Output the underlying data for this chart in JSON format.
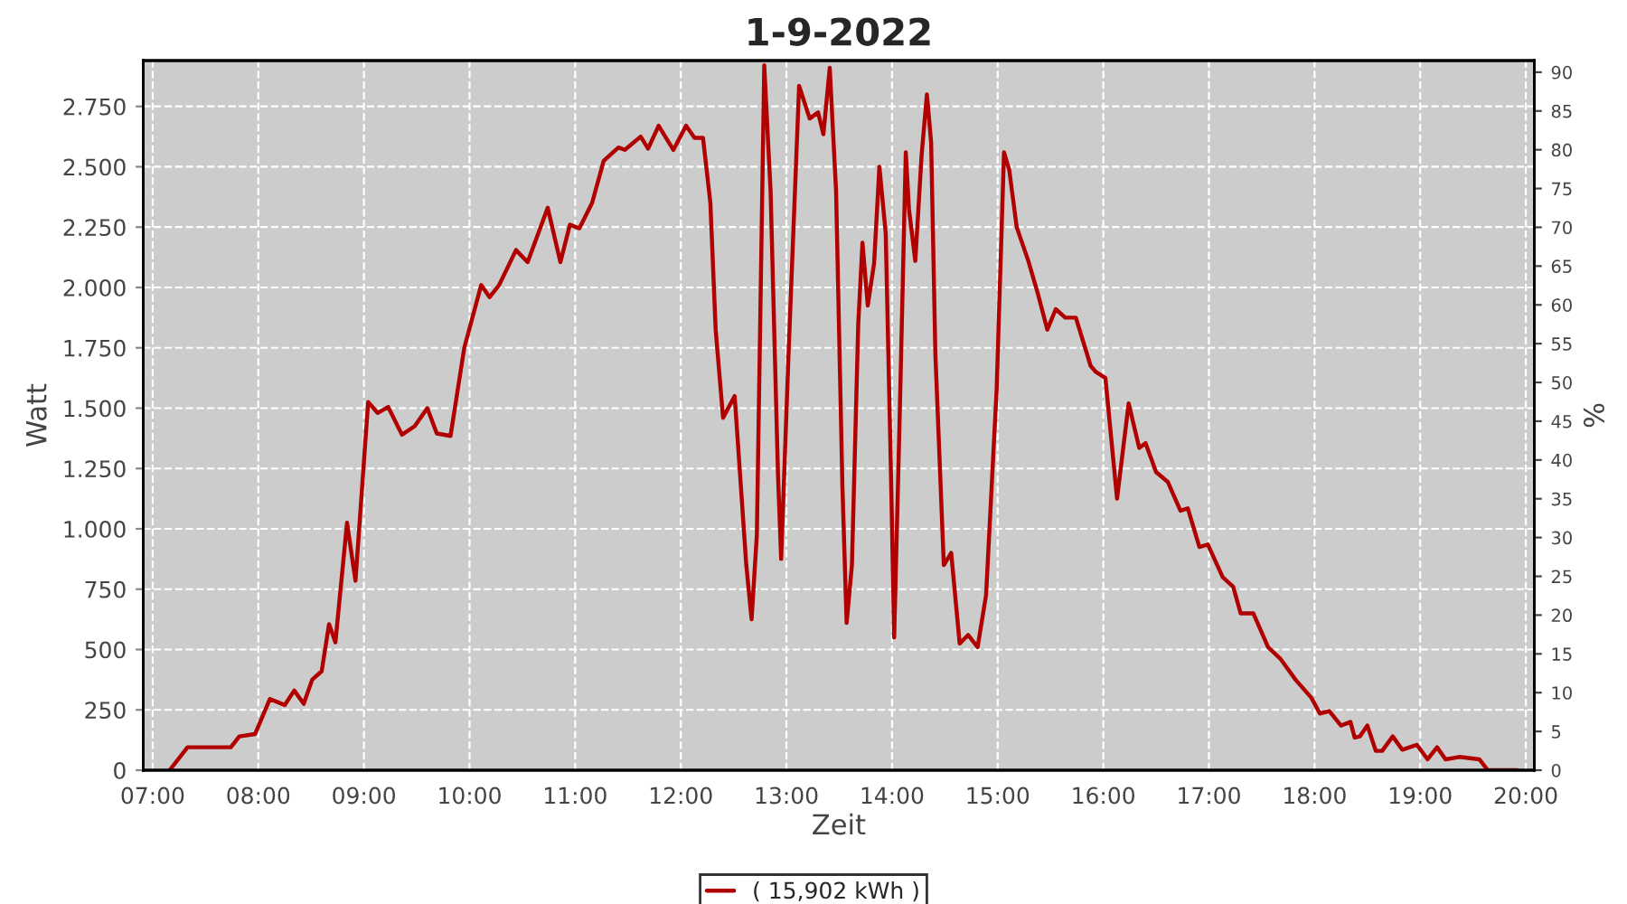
{
  "chart_data": {
    "type": "line",
    "title": "1-9-2022",
    "xlabel": "Zeit",
    "ylabel": "Watt",
    "y2label": "%",
    "xlim": [
      6.91,
      20.08
    ],
    "ylim": [
      0,
      2940
    ],
    "y2lim": [
      0,
      91.5
    ],
    "xticks": [
      {
        "value": 7,
        "label": "07:00"
      },
      {
        "value": 8,
        "label": "08:00"
      },
      {
        "value": 9,
        "label": "09:00"
      },
      {
        "value": 10,
        "label": "10:00"
      },
      {
        "value": 11,
        "label": "11:00"
      },
      {
        "value": 12,
        "label": "12:00"
      },
      {
        "value": 13,
        "label": "13:00"
      },
      {
        "value": 14,
        "label": "14:00"
      },
      {
        "value": 15,
        "label": "15:00"
      },
      {
        "value": 16,
        "label": "16:00"
      },
      {
        "value": 17,
        "label": "17:00"
      },
      {
        "value": 18,
        "label": "18:00"
      },
      {
        "value": 19,
        "label": "19:00"
      },
      {
        "value": 20,
        "label": "20:00"
      }
    ],
    "yticks": [
      0,
      250,
      500,
      750,
      {
        "value": 1000,
        "label": "1.000"
      },
      {
        "value": 1250,
        "label": "1.250"
      },
      {
        "value": 1500,
        "label": "1.500"
      },
      {
        "value": 1750,
        "label": "1.750"
      },
      {
        "value": 2000,
        "label": "2.000"
      },
      {
        "value": 2250,
        "label": "2.250"
      },
      {
        "value": 2500,
        "label": "2.500"
      },
      {
        "value": 2750,
        "label": "2.750"
      }
    ],
    "y2ticks": [
      0,
      5,
      10,
      15,
      20,
      25,
      30,
      35,
      40,
      45,
      50,
      55,
      60,
      65,
      70,
      75,
      80,
      85,
      90
    ],
    "grid": true,
    "legend": "bottom",
    "series": [
      {
        "name": "( 15,902 kWh )",
        "color": "#b00000",
        "x": [
          7.16,
          7.33,
          7.74,
          7.82,
          7.97,
          8.11,
          8.25,
          8.34,
          8.43,
          8.51,
          8.6,
          8.67,
          8.73,
          8.84,
          8.92,
          9.04,
          9.13,
          9.23,
          9.36,
          9.48,
          9.6,
          9.69,
          9.82,
          9.95,
          10.11,
          10.19,
          10.28,
          10.44,
          10.55,
          10.74,
          10.86,
          10.95,
          11.04,
          11.16,
          11.27,
          11.41,
          11.47,
          11.62,
          11.69,
          11.79,
          11.93,
          12.05,
          12.13,
          12.21,
          12.28,
          12.33,
          12.4,
          12.51,
          12.62,
          12.67,
          12.72,
          12.79,
          12.85,
          12.92,
          12.95,
          13.02,
          13.12,
          13.22,
          13.3,
          13.35,
          13.41,
          13.47,
          13.53,
          13.57,
          13.62,
          13.68,
          13.72,
          13.77,
          13.83,
          13.88,
          13.94,
          13.99,
          14.02,
          14.07,
          14.13,
          14.16,
          14.22,
          14.28,
          14.33,
          14.37,
          14.41,
          14.49,
          14.56,
          14.64,
          14.72,
          14.81,
          14.89,
          14.99,
          15.06,
          15.11,
          15.18,
          15.29,
          15.38,
          15.47,
          15.55,
          15.64,
          15.74,
          15.88,
          15.93,
          16.02,
          16.13,
          16.24,
          16.34,
          16.4,
          16.5,
          16.61,
          16.73,
          16.8,
          16.91,
          16.99,
          17.13,
          17.23,
          17.3,
          17.42,
          17.56,
          17.68,
          17.82,
          17.97,
          18.05,
          18.14,
          18.25,
          18.34,
          18.38,
          18.43,
          18.5,
          18.58,
          18.64,
          18.74,
          18.83,
          18.97,
          19.07,
          19.16,
          19.24,
          19.37,
          19.56,
          19.64,
          19.92
        ],
        "values": [
          0,
          95,
          95,
          140,
          150,
          295,
          270,
          330,
          275,
          375,
          410,
          605,
          530,
          1025,
          785,
          1525,
          1480,
          1505,
          1390,
          1425,
          1500,
          1395,
          1385,
          1750,
          2010,
          1960,
          2010,
          2155,
          2105,
          2330,
          2105,
          2260,
          2245,
          2350,
          2525,
          2580,
          2570,
          2625,
          2575,
          2670,
          2570,
          2670,
          2620,
          2620,
          2350,
          1825,
          1460,
          1550,
          850,
          625,
          975,
          2920,
          2400,
          1225,
          875,
          1725,
          2835,
          2700,
          2725,
          2635,
          2910,
          2400,
          1175,
          610,
          850,
          1850,
          2185,
          1925,
          2100,
          2500,
          2225,
          1225,
          550,
          1425,
          2560,
          2325,
          2110,
          2550,
          2800,
          2600,
          1725,
          850,
          900,
          525,
          560,
          510,
          725,
          1575,
          2560,
          2485,
          2250,
          2110,
          1975,
          1825,
          1910,
          1875,
          1875,
          1675,
          1650,
          1625,
          1125,
          1520,
          1335,
          1355,
          1235,
          1195,
          1075,
          1085,
          925,
          935,
          800,
          760,
          650,
          650,
          510,
          460,
          375,
          300,
          235,
          245,
          185,
          200,
          135,
          140,
          185,
          80,
          80,
          140,
          85,
          105,
          45,
          95,
          45,
          55,
          45,
          0,
          0
        ]
      }
    ]
  }
}
